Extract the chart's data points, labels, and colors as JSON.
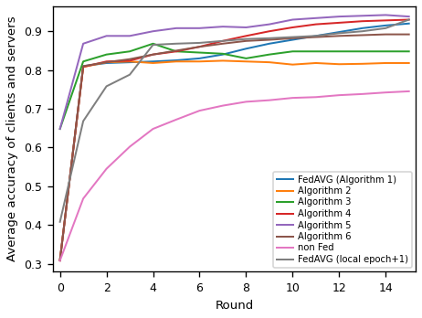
{
  "title": "",
  "xlabel": "Round",
  "ylabel": "Average accuracy of clients and servers",
  "xlim": [
    -0.3,
    15.3
  ],
  "ylim": [
    0.28,
    0.965
  ],
  "xticks": [
    0,
    2,
    4,
    6,
    8,
    10,
    12,
    14
  ],
  "yticks": [
    0.3,
    0.4,
    0.5,
    0.6,
    0.7,
    0.8,
    0.9
  ],
  "series": [
    {
      "label": "FedAVG (Algorithm 1)",
      "color": "#1f77b4",
      "x": [
        0,
        1,
        2,
        3,
        4,
        5,
        6,
        7,
        8,
        9,
        10,
        11,
        12,
        13,
        14,
        15
      ],
      "y": [
        0.31,
        0.81,
        0.818,
        0.82,
        0.822,
        0.825,
        0.83,
        0.84,
        0.855,
        0.868,
        0.878,
        0.888,
        0.898,
        0.908,
        0.915,
        0.92
      ]
    },
    {
      "label": "Algorithm 2",
      "color": "#ff7f0e",
      "x": [
        0,
        1,
        2,
        3,
        4,
        5,
        6,
        7,
        8,
        9,
        10,
        11,
        12,
        13,
        14,
        15
      ],
      "y": [
        0.31,
        0.808,
        0.82,
        0.822,
        0.818,
        0.822,
        0.822,
        0.824,
        0.822,
        0.82,
        0.814,
        0.818,
        0.815,
        0.816,
        0.818,
        0.818
      ]
    },
    {
      "label": "Algorithm 3",
      "color": "#2ca02c",
      "x": [
        0,
        1,
        2,
        3,
        4,
        5,
        6,
        7,
        8,
        9,
        10,
        11,
        12,
        13,
        14,
        15
      ],
      "y": [
        0.648,
        0.822,
        0.84,
        0.848,
        0.868,
        0.848,
        0.845,
        0.842,
        0.83,
        0.84,
        0.848,
        0.848,
        0.848,
        0.848,
        0.848,
        0.848
      ]
    },
    {
      "label": "Algorithm 4",
      "color": "#d62728",
      "x": [
        0,
        1,
        2,
        3,
        4,
        5,
        6,
        7,
        8,
        9,
        10,
        11,
        12,
        13,
        14,
        15
      ],
      "y": [
        0.308,
        0.808,
        0.822,
        0.824,
        0.84,
        0.848,
        0.86,
        0.875,
        0.888,
        0.9,
        0.91,
        0.918,
        0.922,
        0.926,
        0.928,
        0.93
      ]
    },
    {
      "label": "Algorithm 5",
      "color": "#9467bd",
      "x": [
        0,
        1,
        2,
        3,
        4,
        5,
        6,
        7,
        8,
        9,
        10,
        11,
        12,
        13,
        14,
        15
      ],
      "y": [
        0.648,
        0.868,
        0.888,
        0.888,
        0.9,
        0.908,
        0.908,
        0.912,
        0.91,
        0.918,
        0.93,
        0.934,
        0.938,
        0.94,
        0.942,
        0.938
      ]
    },
    {
      "label": "Algorithm 6",
      "color": "#8c564b",
      "x": [
        0,
        1,
        2,
        3,
        4,
        5,
        6,
        7,
        8,
        9,
        10,
        11,
        12,
        13,
        14,
        15
      ],
      "y": [
        0.308,
        0.81,
        0.82,
        0.828,
        0.84,
        0.85,
        0.86,
        0.868,
        0.875,
        0.878,
        0.882,
        0.885,
        0.888,
        0.89,
        0.892,
        0.892
      ]
    },
    {
      "label": "non Fed",
      "color": "#e377c2",
      "x": [
        0,
        1,
        2,
        3,
        4,
        5,
        6,
        7,
        8,
        9,
        10,
        11,
        12,
        13,
        14,
        15
      ],
      "y": [
        0.308,
        0.468,
        0.545,
        0.602,
        0.648,
        0.672,
        0.695,
        0.708,
        0.718,
        0.722,
        0.728,
        0.73,
        0.735,
        0.738,
        0.742,
        0.745
      ]
    },
    {
      "label": "FedAVG (local epoch+1)",
      "color": "#7f7f7f",
      "x": [
        0,
        1,
        2,
        3,
        4,
        5,
        6,
        7,
        8,
        9,
        10,
        11,
        12,
        13,
        14,
        15
      ],
      "y": [
        0.408,
        0.668,
        0.758,
        0.788,
        0.865,
        0.868,
        0.87,
        0.875,
        0.88,
        0.882,
        0.885,
        0.888,
        0.895,
        0.9,
        0.908,
        0.93
      ]
    }
  ],
  "figwidth": 3.85,
  "figheight": 2.9,
  "dpi": 120,
  "legend_fontsize": 6.0,
  "axis_label_fontsize": 8,
  "tick_fontsize": 7.5,
  "linewidth": 1.2
}
